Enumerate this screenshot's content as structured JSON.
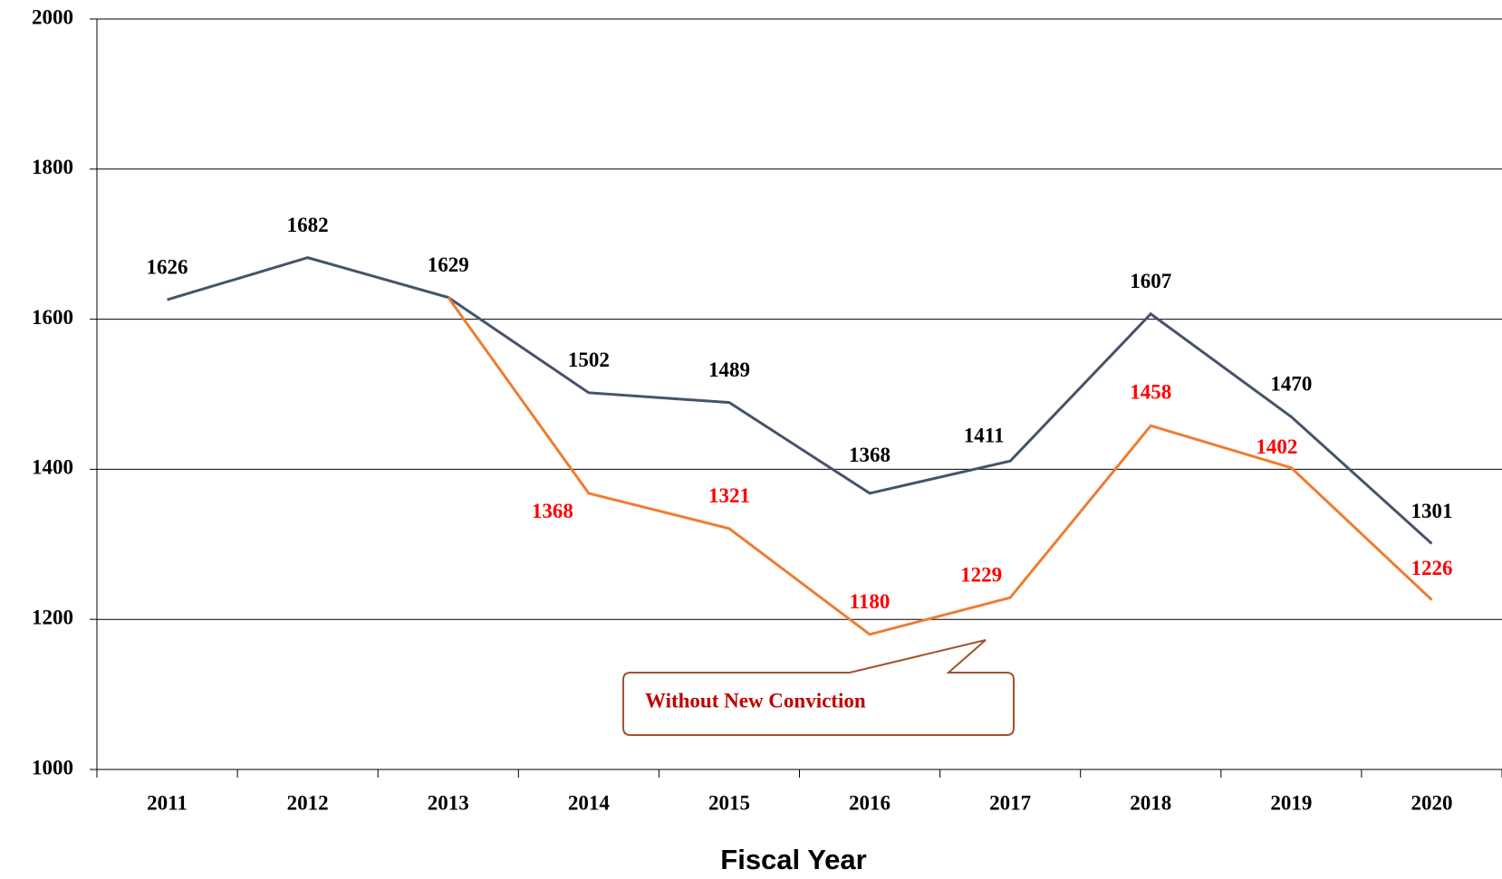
{
  "chart_data": {
    "type": "line",
    "x_label": "Fiscal Year",
    "annotation": "Without New Conviction",
    "categories": [
      "2011",
      "2012",
      "2013",
      "2014",
      "2015",
      "2016",
      "2017",
      "2018",
      "2019",
      "2020"
    ],
    "series": [
      {
        "color": "#44546a",
        "label_color": "#000000",
        "values": [
          1626,
          1682,
          1629,
          1502,
          1489,
          1368,
          1411,
          1607,
          1470,
          1301
        ]
      },
      {
        "color": "#ed7d31",
        "label_color": "#ff0000",
        "values": [
          null,
          null,
          1629,
          1368,
          1321,
          1180,
          1229,
          1458,
          1402,
          1226
        ]
      }
    ],
    "ylim": [
      1000,
      2000
    ],
    "yticks": [
      1000,
      1200,
      1400,
      1600,
      1800,
      2000
    ],
    "grid": true
  }
}
